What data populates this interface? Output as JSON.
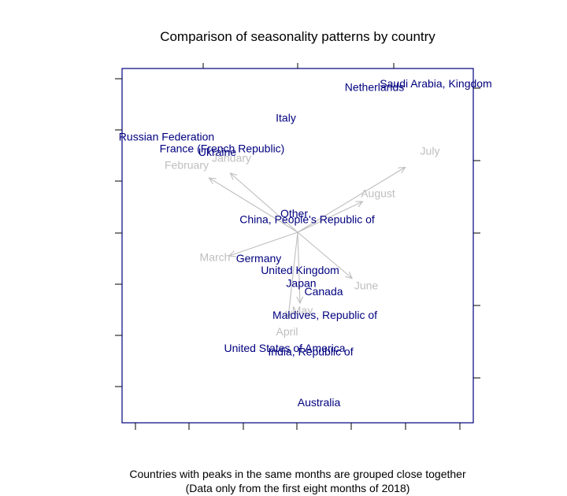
{
  "chart_data": {
    "type": "biplot",
    "title": "Comparison of seasonality patterns by country",
    "caption_lines": [
      "Countries with peaks in the same months are grouped close together",
      "(Data only from the first eight months of 2018)"
    ],
    "xlim": [
      -1.6,
      1.6
    ],
    "ylim": [
      -1.6,
      1.0
    ],
    "origin": [
      0,
      0
    ],
    "grid": false,
    "colors": {
      "country": "#00007f",
      "month": "#bebebe",
      "arrow": "#bebebe",
      "frame": "#00007f",
      "axis": "#000000"
    },
    "countries": [
      {
        "name": "Saudi Arabia, Kingdom",
        "x": 1.17,
        "y": 1.25
      },
      {
        "name": "Netherlands",
        "x": 0.65,
        "y": 1.22
      },
      {
        "name": "Italy",
        "x": -0.1,
        "y": 0.96
      },
      {
        "name": "Russian Federation",
        "x": -1.11,
        "y": 0.8
      },
      {
        "name": "France (French Republic)",
        "x": -0.64,
        "y": 0.7
      },
      {
        "name": "Ukraine",
        "x": -0.68,
        "y": 0.67
      },
      {
        "name": "Other",
        "x": -0.03,
        "y": 0.15
      },
      {
        "name": "China, People's Republic of",
        "x": 0.08,
        "y": 0.1
      },
      {
        "name": "Germany",
        "x": -0.33,
        "y": -0.23
      },
      {
        "name": "United Kingdom",
        "x": 0.02,
        "y": -0.33
      },
      {
        "name": "Japan",
        "x": 0.03,
        "y": -0.44
      },
      {
        "name": "Canada",
        "x": 0.22,
        "y": -0.51
      },
      {
        "name": "Maldives, Republic of",
        "x": 0.23,
        "y": -0.71
      },
      {
        "name": "United States of America",
        "x": -0.11,
        "y": -0.99
      },
      {
        "name": "India, Republic of",
        "x": 0.11,
        "y": -1.02
      },
      {
        "name": "Australia",
        "x": 0.18,
        "y": -1.45
      }
    ],
    "months": [
      {
        "name": "July",
        "x": 0.91,
        "y": 0.55,
        "label_x": 1.12,
        "label_y": 0.68
      },
      {
        "name": "February",
        "x": -0.75,
        "y": 0.46,
        "label_x": -0.94,
        "label_y": 0.56
      },
      {
        "name": "January",
        "x": -0.57,
        "y": 0.5,
        "label_x": -0.56,
        "label_y": 0.62
      },
      {
        "name": "August",
        "x": 0.55,
        "y": 0.26,
        "label_x": 0.68,
        "label_y": 0.32
      },
      {
        "name": "March",
        "x": -0.58,
        "y": -0.2,
        "label_x": -0.7,
        "label_y": -0.22
      },
      {
        "name": "June",
        "x": 0.46,
        "y": -0.39,
        "label_x": 0.58,
        "label_y": -0.46
      },
      {
        "name": "May",
        "x": -0.08,
        "y": -0.72,
        "label_x": 0.04,
        "label_y": -0.67
      },
      {
        "name": "April",
        "x": 0.02,
        "y": -0.6,
        "label_x": -0.09,
        "label_y": -0.85
      }
    ]
  }
}
